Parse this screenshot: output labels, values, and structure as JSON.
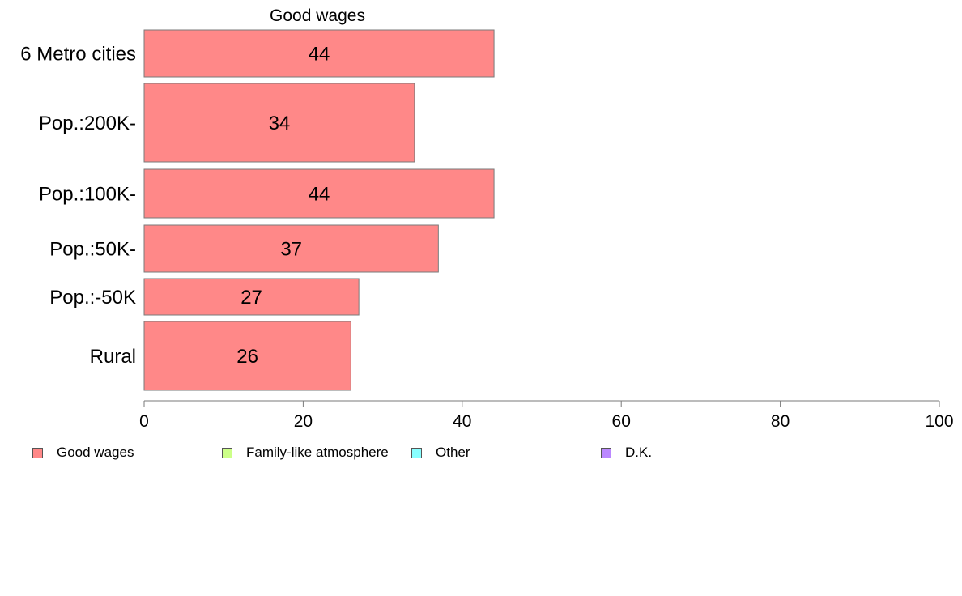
{
  "chart_data": {
    "type": "bar",
    "orientation": "horizontal",
    "title": "Good wages",
    "categories": [
      "6 Metro cities",
      "Pop.:200K-",
      "Pop.:100K-",
      "Pop.:50K-",
      "Pop.:-50K",
      "Rural"
    ],
    "series": [
      {
        "name": "Good wages",
        "values": [
          44,
          34,
          44,
          37,
          27,
          26
        ],
        "color": "#ff8888"
      }
    ],
    "xlim": [
      0,
      100
    ],
    "x_ticks": [
      "0",
      "20",
      "40",
      "60",
      "80",
      "100"
    ],
    "grid": false,
    "legend_position": "bottom-left",
    "legend": [
      {
        "label": "Good wages",
        "color": "#ff8888"
      },
      {
        "label": "Family-like atmosphere",
        "color": "#ccff88"
      },
      {
        "label": "Other",
        "color": "#88ffff"
      },
      {
        "label": "D.K.",
        "color": "#bb88ff"
      }
    ]
  }
}
